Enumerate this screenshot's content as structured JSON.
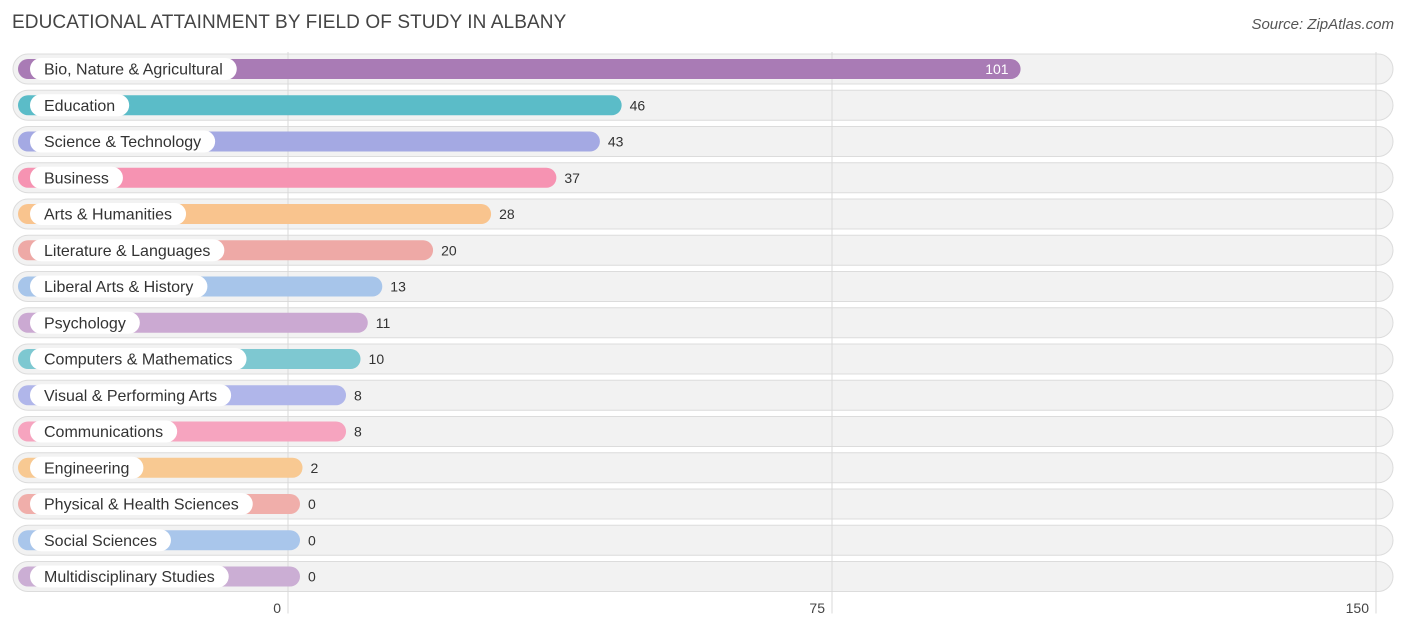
{
  "title": "EDUCATIONAL ATTAINMENT BY FIELD OF STUDY IN ALBANY",
  "source": "Source: ZipAtlas.com",
  "chart_data": {
    "type": "bar",
    "orientation": "horizontal",
    "categories": [
      "Bio, Nature & Agricultural",
      "Education",
      "Science & Technology",
      "Business",
      "Arts & Humanities",
      "Literature & Languages",
      "Liberal Arts & History",
      "Psychology",
      "Computers & Mathematics",
      "Visual & Performing Arts",
      "Communications",
      "Engineering",
      "Physical & Health Sciences",
      "Social Sciences",
      "Multidisciplinary Studies"
    ],
    "values": [
      101,
      46,
      43,
      37,
      28,
      20,
      13,
      11,
      10,
      8,
      8,
      2,
      0,
      0,
      0
    ],
    "value_labels": [
      "101",
      "46",
      "43",
      "37",
      "28",
      "20",
      "13",
      "11",
      "10",
      "8",
      "8",
      "2",
      "0",
      "0",
      "0"
    ],
    "colors": [
      "#a97bb5",
      "#5bbcc8",
      "#a4a9e3",
      "#f693b2",
      "#f9c48e",
      "#eea9a6",
      "#a7c5ea",
      "#cba9d2",
      "#7ec8d1",
      "#b0b6ea",
      "#f6a4bf",
      "#f8c992",
      "#f0aeaa",
      "#a9c6eb",
      "#cbaed4"
    ],
    "xlim": [
      0,
      150
    ],
    "ticks": [
      "0",
      "75",
      "150"
    ],
    "grid": true
  }
}
